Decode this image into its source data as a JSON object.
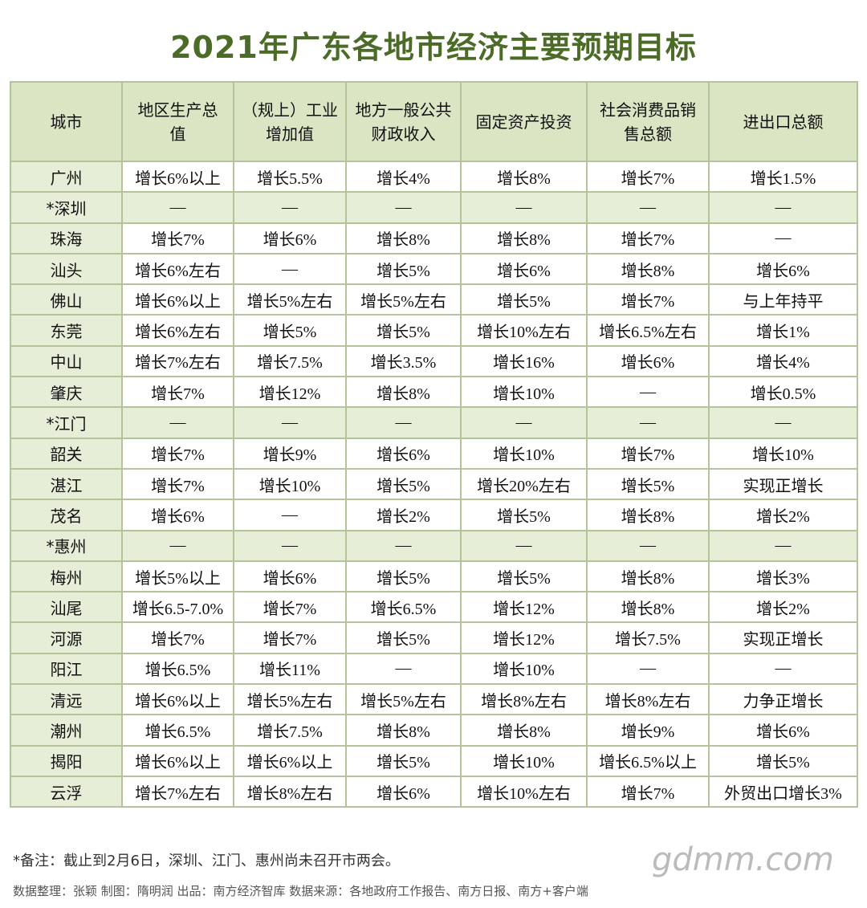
{
  "title": "2021年广东各地市经济主要预期目标",
  "table": {
    "header": [
      "城市",
      "地区生产总值",
      "（规上）工业增加值",
      "地方一般公共财政收入",
      "固定资产投资",
      "社会消费品销售总额",
      "进出口总额"
    ],
    "rows": [
      [
        "广州",
        "增长6%以上",
        "增长5.5%",
        "增长4%",
        "增长8%",
        "增长7%",
        "增长1.5%"
      ],
      [
        "*深圳",
        "—",
        "—",
        "—",
        "—",
        "—",
        "—"
      ],
      [
        "珠海",
        "增长7%",
        "增长6%",
        "增长8%",
        "增长8%",
        "增长7%",
        "—"
      ],
      [
        "汕头",
        "增长6%左右",
        "—",
        "增长5%",
        "增长6%",
        "增长8%",
        "增长6%"
      ],
      [
        "佛山",
        "增长6%以上",
        "增长5%左右",
        "增长5%左右",
        "增长5%",
        "增长7%",
        "与上年持平"
      ],
      [
        "东莞",
        "增长6%左右",
        "增长5%",
        "增长5%",
        "增长10%左右",
        "增长6.5%左右",
        "增长1%"
      ],
      [
        "中山",
        "增长7%左右",
        "增长7.5%",
        "增长3.5%",
        "增长16%",
        "增长6%",
        "增长4%"
      ],
      [
        "肇庆",
        "增长7%",
        "增长12%",
        "增长8%",
        "增长10%",
        "—",
        "增长0.5%"
      ],
      [
        "*江门",
        "—",
        "—",
        "—",
        "—",
        "—",
        "—"
      ],
      [
        "韶关",
        "增长7%",
        "增长9%",
        "增长6%",
        "增长10%",
        "增长7%",
        "增长10%"
      ],
      [
        "湛江",
        "增长7%",
        "增长10%",
        "增长5%",
        "增长20%左右",
        "增长5%",
        "实现正增长"
      ],
      [
        "茂名",
        "增长6%",
        "—",
        "增长2%",
        "增长5%",
        "增长8%",
        "增长2%"
      ],
      [
        "*惠州",
        "—",
        "—",
        "—",
        "—",
        "—",
        "—"
      ],
      [
        "梅州",
        "增长5%以上",
        "增长6%",
        "增长5%",
        "增长5%",
        "增长8%",
        "增长3%"
      ],
      [
        "汕尾",
        "增长6.5-7.0%",
        "增长7%",
        "增长6.5%",
        "增长12%",
        "增长8%",
        "增长2%"
      ],
      [
        "河源",
        "增长7%",
        "增长7%",
        "增长5%",
        "增长12%",
        "增长7.5%",
        "实现正增长"
      ],
      [
        "阳江",
        "增长6.5%",
        "增长11%",
        "—",
        "增长10%",
        "—",
        "—"
      ],
      [
        "清远",
        "增长6%以上",
        "增长5%左右",
        "增长5%左右",
        "增长8%左右",
        "增长8%左右",
        "力争正增长"
      ],
      [
        "潮州",
        "增长6.5%",
        "增长7.5%",
        "增长8%",
        "增长8%",
        "增长9%",
        "增长6%"
      ],
      [
        "揭阳",
        "增长6%以上",
        "增长6%以上",
        "增长5%",
        "增长10%",
        "增长6.5%以上",
        "增长5%"
      ],
      [
        "云浮",
        "增长7%左右",
        "增长8%左右",
        "增长6%",
        "增长10%左右",
        "增长7%",
        "外贸出口增长3%"
      ]
    ]
  },
  "note": "*备注：截止到2月6日，深圳、江门、惠州尚未召开市两会。",
  "credits": "数据整理：张颖    制图：隋明润    出品：南方经济智库    数据来源：各地政府工作报告、南方日报、南方+客户端",
  "watermark": "gdmm.com"
}
